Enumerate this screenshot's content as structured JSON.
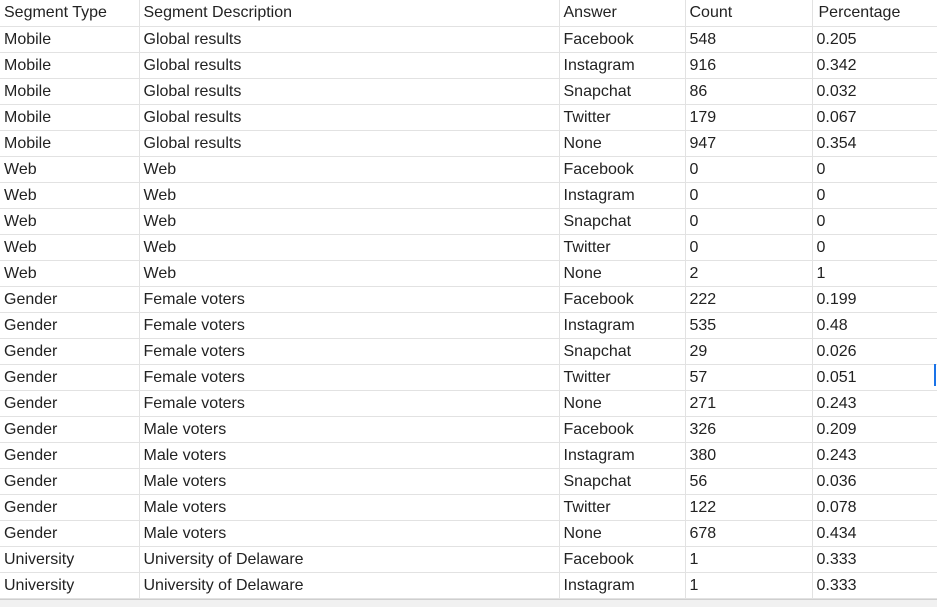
{
  "columns": [
    "Segment Type",
    "Segment Description",
    "Answer",
    "Count",
    "Percentage"
  ],
  "rows": [
    {
      "type": "Mobile",
      "desc": "Global results",
      "answer": "Facebook",
      "count": "548",
      "pct": "0.205"
    },
    {
      "type": "Mobile",
      "desc": "Global results",
      "answer": "Instagram",
      "count": "916",
      "pct": "0.342"
    },
    {
      "type": "Mobile",
      "desc": "Global results",
      "answer": "Snapchat",
      "count": "86",
      "pct": "0.032"
    },
    {
      "type": "Mobile",
      "desc": "Global results",
      "answer": "Twitter",
      "count": "179",
      "pct": "0.067"
    },
    {
      "type": "Mobile",
      "desc": "Global results",
      "answer": "None",
      "count": "947",
      "pct": "0.354"
    },
    {
      "type": "Web",
      "desc": "Web",
      "answer": "Facebook",
      "count": "0",
      "pct": "0"
    },
    {
      "type": "Web",
      "desc": "Web",
      "answer": "Instagram",
      "count": "0",
      "pct": "0"
    },
    {
      "type": "Web",
      "desc": "Web",
      "answer": "Snapchat",
      "count": "0",
      "pct": "0"
    },
    {
      "type": "Web",
      "desc": "Web",
      "answer": "Twitter",
      "count": "0",
      "pct": "0"
    },
    {
      "type": "Web",
      "desc": "Web",
      "answer": "None",
      "count": "2",
      "pct": "1"
    },
    {
      "type": "Gender",
      "desc": "Female voters",
      "answer": "Facebook",
      "count": "222",
      "pct": "0.199"
    },
    {
      "type": "Gender",
      "desc": "Female voters",
      "answer": "Instagram",
      "count": "535",
      "pct": "0.48"
    },
    {
      "type": "Gender",
      "desc": "Female voters",
      "answer": "Snapchat",
      "count": "29",
      "pct": "0.026"
    },
    {
      "type": "Gender",
      "desc": "Female voters",
      "answer": "Twitter",
      "count": "57",
      "pct": "0.051"
    },
    {
      "type": "Gender",
      "desc": "Female voters",
      "answer": "None",
      "count": "271",
      "pct": "0.243"
    },
    {
      "type": "Gender",
      "desc": "Male voters",
      "answer": "Facebook",
      "count": "326",
      "pct": "0.209"
    },
    {
      "type": "Gender",
      "desc": "Male voters",
      "answer": "Instagram",
      "count": "380",
      "pct": "0.243"
    },
    {
      "type": "Gender",
      "desc": "Male voters",
      "answer": "Snapchat",
      "count": "56",
      "pct": "0.036"
    },
    {
      "type": "Gender",
      "desc": "Male voters",
      "answer": "Twitter",
      "count": "122",
      "pct": "0.078"
    },
    {
      "type": "Gender",
      "desc": "Male voters",
      "answer": "None",
      "count": "678",
      "pct": "0.434"
    },
    {
      "type": "University",
      "desc": "University of Delaware",
      "answer": "Facebook",
      "count": "1",
      "pct": "0.333"
    },
    {
      "type": "University",
      "desc": "University of Delaware",
      "answer": "Instagram",
      "count": "1",
      "pct": "0.333"
    }
  ],
  "colors": {
    "grid_line": "#e2e2e2",
    "selection_accent": "#1a73e8",
    "text": "#222222"
  }
}
